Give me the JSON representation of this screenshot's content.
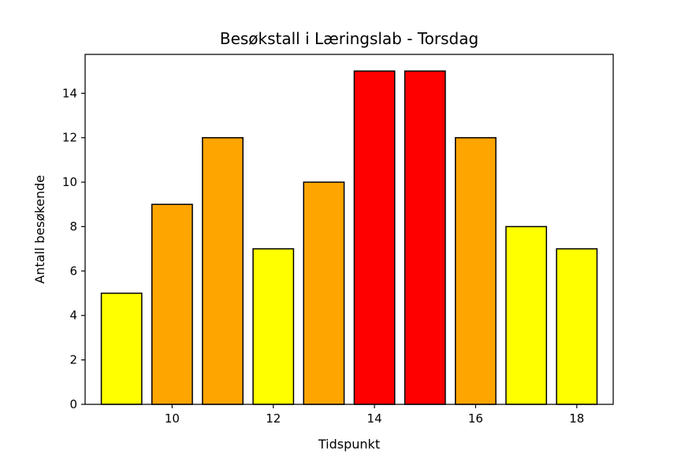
{
  "chart_data": {
    "type": "bar",
    "title": "Besøkstall i Læringslab - Torsdag",
    "xlabel": "Tidspunkt",
    "ylabel": "Antall besøkende",
    "x": [
      9,
      10,
      11,
      12,
      13,
      14,
      15,
      16,
      17,
      18
    ],
    "values": [
      5,
      9,
      12,
      7,
      10,
      15,
      15,
      12,
      8,
      7
    ],
    "bar_colors": [
      "#ffff00",
      "#ffa500",
      "#ffa500",
      "#ffff00",
      "#ffa500",
      "#ff0000",
      "#ff0000",
      "#ffa500",
      "#ffff00",
      "#ffff00"
    ],
    "xlim": [
      8.28,
      18.72
    ],
    "ylim": [
      0,
      15.75
    ],
    "xticks": [
      10,
      12,
      14,
      16,
      18
    ],
    "yticks": [
      0,
      2,
      4,
      6,
      8,
      10,
      12,
      14
    ],
    "grid": false,
    "legend": false
  }
}
